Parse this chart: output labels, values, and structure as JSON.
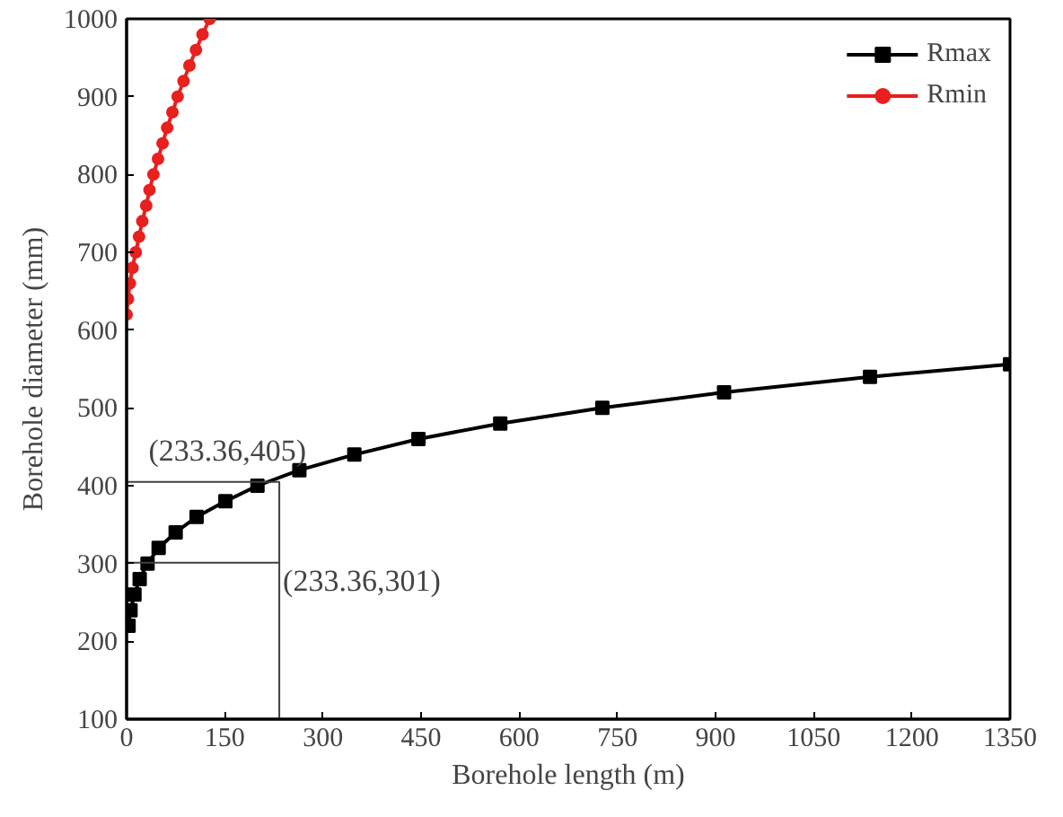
{
  "chart_data": {
    "type": "line",
    "xlabel": "Borehole length (m)",
    "ylabel": "Borehole diameter (mm)",
    "xlim": [
      0,
      1350
    ],
    "ylim": [
      100,
      1000
    ],
    "xticks": [
      0,
      150,
      300,
      450,
      600,
      750,
      900,
      1050,
      1200,
      1350
    ],
    "yticks": [
      100,
      200,
      300,
      400,
      500,
      600,
      700,
      800,
      900,
      1000
    ],
    "grid": false,
    "legend": "top right",
    "series": [
      {
        "name": "Rmax",
        "color": "#000000",
        "marker": "square",
        "x": [
          3,
          6,
          12,
          20,
          32,
          49,
          75,
          107,
          151,
          200,
          264,
          348,
          446,
          571,
          727,
          913,
          1136,
          1350
        ],
        "values": [
          220,
          240,
          260,
          280,
          300,
          320,
          340,
          360,
          380,
          400,
          420,
          440,
          460,
          480,
          500,
          520,
          540,
          556
        ]
      },
      {
        "name": "Rmin",
        "color": "#e8201e",
        "marker": "circle",
        "x": [
          0,
          2,
          5,
          9,
          14,
          19,
          24,
          30,
          35,
          41,
          48,
          55,
          62,
          70,
          78,
          87,
          96,
          106,
          116,
          127
        ],
        "values": [
          620,
          640,
          660,
          680,
          700,
          720,
          740,
          760,
          780,
          800,
          820,
          840,
          860,
          880,
          900,
          920,
          940,
          960,
          980,
          1000
        ]
      },
      {
        "color": "#404040",
        "marker": "none",
        "x": [
          0,
          233.36,
          233.36
        ],
        "values": [
          405,
          405,
          100
        ]
      },
      {
        "color": "#404040",
        "marker": "none",
        "x": [
          0,
          233.36
        ],
        "values": [
          301,
          301
        ]
      }
    ],
    "annotations": [
      {
        "text": "(233.36,405)",
        "x": 233.36,
        "y": 405
      },
      {
        "text": "(233.36,301)",
        "x": 233.36,
        "y": 301
      }
    ]
  }
}
